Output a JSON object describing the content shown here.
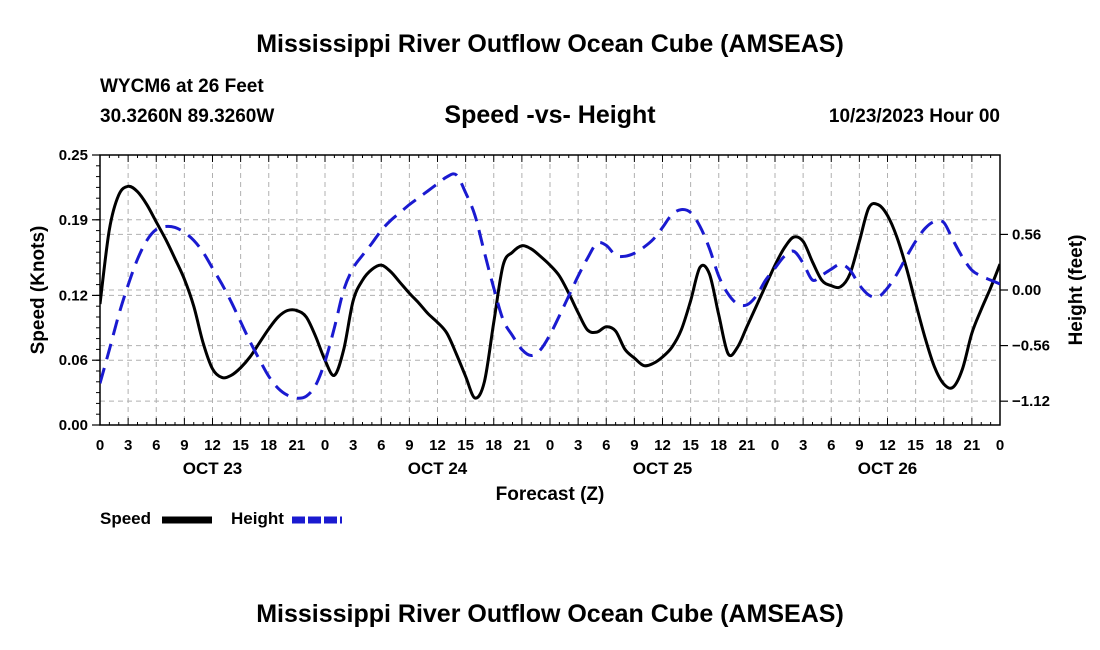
{
  "header": {
    "title": "Mississippi River Outflow Ocean Cube (AMSEAS)",
    "station": "WYCM6 at 26 Feet",
    "coords": "30.3260N  89.3260W",
    "subtitle": "Speed -vs- Height",
    "datetime": "10/23/2023 Hour 00"
  },
  "footer": {
    "title": "Mississippi River Outflow Ocean Cube (AMSEAS)"
  },
  "legend": {
    "speed": "Speed",
    "height": "Height"
  },
  "colors": {
    "speed": "#000000",
    "height": "#1a1ad0",
    "grid": "#b0b0b0"
  },
  "chart_data": {
    "type": "line",
    "title": "Speed -vs- Height",
    "xlabel": "Forecast (Z)",
    "ylabel_left": "Speed (Knots)",
    "ylabel_right": "Height (feet)",
    "xlim": [
      0,
      96
    ],
    "ylim_left": [
      0,
      0.25
    ],
    "ylim_right": [
      -1.36,
      1.36
    ],
    "x_ticks": [
      0,
      3,
      6,
      9,
      12,
      15,
      18,
      21,
      24,
      27,
      30,
      33,
      36,
      39,
      42,
      45,
      48,
      51,
      54,
      57,
      60,
      63,
      66,
      69,
      72,
      75,
      78,
      81,
      84,
      87,
      90,
      93,
      96
    ],
    "x_tick_labels": [
      "0",
      "3",
      "6",
      "9",
      "12",
      "15",
      "18",
      "21",
      "0",
      "3",
      "6",
      "9",
      "12",
      "15",
      "18",
      "21",
      "0",
      "3",
      "6",
      "9",
      "12",
      "15",
      "18",
      "21",
      "0",
      "3",
      "6",
      "9",
      "12",
      "15",
      "18",
      "21",
      "0"
    ],
    "day_labels": [
      {
        "x": 12,
        "label": "OCT 23"
      },
      {
        "x": 36,
        "label": "OCT 24"
      },
      {
        "x": 60,
        "label": "OCT 25"
      },
      {
        "x": 84,
        "label": "OCT 26"
      }
    ],
    "left_ticks": [
      0.0,
      0.06,
      0.12,
      0.19,
      0.25
    ],
    "left_tick_labels": [
      "0.00",
      "0.06",
      "0.12",
      "0.19",
      "0.25"
    ],
    "right_ticks": [
      -1.12,
      -0.56,
      0.0,
      0.56
    ],
    "right_tick_labels": [
      "−1.12",
      "−0.56",
      "0.00",
      "0.56"
    ],
    "series": [
      {
        "name": "Speed",
        "axis": "left",
        "style": "solid",
        "x": [
          0,
          1,
          2,
          3,
          4,
          5,
          6,
          7,
          8,
          9,
          10,
          11,
          12,
          13,
          14,
          15,
          16,
          17,
          18,
          19,
          20,
          21,
          22,
          23,
          24,
          25,
          26,
          27,
          28,
          29,
          30,
          31,
          32,
          33,
          34,
          35,
          36,
          37,
          38,
          39,
          40,
          41,
          42,
          43,
          44,
          45,
          46,
          47,
          48,
          49,
          50,
          51,
          52,
          53,
          54,
          55,
          56,
          57,
          58,
          59,
          60,
          61,
          62,
          63,
          64,
          65,
          66,
          67,
          68,
          69,
          70,
          71,
          72,
          73,
          74,
          75,
          76,
          77,
          78,
          79,
          80,
          81,
          82,
          83,
          84,
          85,
          86,
          87,
          88,
          89,
          90,
          91,
          92,
          93,
          94,
          95,
          96
        ],
        "values": [
          0.112,
          0.181,
          0.213,
          0.221,
          0.216,
          0.204,
          0.188,
          0.172,
          0.154,
          0.135,
          0.11,
          0.076,
          0.052,
          0.044,
          0.046,
          0.053,
          0.063,
          0.076,
          0.089,
          0.1,
          0.106,
          0.106,
          0.1,
          0.082,
          0.06,
          0.046,
          0.07,
          0.115,
          0.134,
          0.144,
          0.148,
          0.142,
          0.132,
          0.122,
          0.113,
          0.103,
          0.095,
          0.085,
          0.066,
          0.045,
          0.025,
          0.04,
          0.095,
          0.148,
          0.16,
          0.166,
          0.163,
          0.156,
          0.148,
          0.138,
          0.122,
          0.104,
          0.088,
          0.086,
          0.091,
          0.087,
          0.07,
          0.062,
          0.055,
          0.057,
          0.063,
          0.072,
          0.088,
          0.115,
          0.146,
          0.14,
          0.102,
          0.066,
          0.072,
          0.091,
          0.11,
          0.129,
          0.148,
          0.164,
          0.174,
          0.17,
          0.151,
          0.134,
          0.129,
          0.128,
          0.14,
          0.17,
          0.201,
          0.204,
          0.194,
          0.174,
          0.146,
          0.113,
          0.081,
          0.054,
          0.038,
          0.035,
          0.052,
          0.085,
          0.107,
          0.127,
          0.149
        ]
      },
      {
        "name": "Height",
        "axis": "right",
        "style": "dashed",
        "x": [
          0,
          1,
          2,
          3,
          4,
          5,
          6,
          7,
          8,
          9,
          10,
          11,
          12,
          13,
          14,
          15,
          16,
          17,
          18,
          19,
          20,
          21,
          22,
          23,
          24,
          25,
          26,
          27,
          28,
          29,
          30,
          31,
          32,
          33,
          34,
          35,
          36,
          37,
          38,
          39,
          40,
          41,
          42,
          43,
          44,
          45,
          46,
          47,
          48,
          49,
          50,
          51,
          52,
          53,
          54,
          55,
          56,
          57,
          58,
          59,
          60,
          61,
          62,
          63,
          64,
          65,
          66,
          67,
          68,
          69,
          70,
          71,
          72,
          73,
          74,
          75,
          76,
          77,
          78,
          79,
          80,
          81,
          82,
          83,
          84,
          85,
          86,
          87,
          88,
          89,
          90,
          91,
          92,
          93,
          94,
          95,
          96
        ],
        "values": [
          -0.94,
          -0.6,
          -0.25,
          0.05,
          0.31,
          0.5,
          0.61,
          0.64,
          0.63,
          0.58,
          0.5,
          0.38,
          0.22,
          0.06,
          -0.12,
          -0.32,
          -0.52,
          -0.7,
          -0.87,
          -0.99,
          -1.06,
          -1.09,
          -1.07,
          -0.96,
          -0.72,
          -0.38,
          0.0,
          0.22,
          0.35,
          0.47,
          0.6,
          0.7,
          0.78,
          0.86,
          0.93,
          1.0,
          1.07,
          1.14,
          1.16,
          0.98,
          0.75,
          0.38,
          0.02,
          -0.3,
          -0.46,
          -0.6,
          -0.66,
          -0.6,
          -0.45,
          -0.26,
          -0.06,
          0.14,
          0.32,
          0.47,
          0.45,
          0.35,
          0.34,
          0.37,
          0.43,
          0.51,
          0.63,
          0.76,
          0.81,
          0.78,
          0.64,
          0.42,
          0.14,
          -0.04,
          -0.14,
          -0.15,
          -0.06,
          0.1,
          0.22,
          0.34,
          0.39,
          0.27,
          0.1,
          0.15,
          0.21,
          0.26,
          0.2,
          0.05,
          -0.05,
          -0.07,
          0.02,
          0.16,
          0.33,
          0.49,
          0.62,
          0.69,
          0.68,
          0.5,
          0.33,
          0.2,
          0.14,
          0.1,
          0.06
        ]
      }
    ]
  }
}
